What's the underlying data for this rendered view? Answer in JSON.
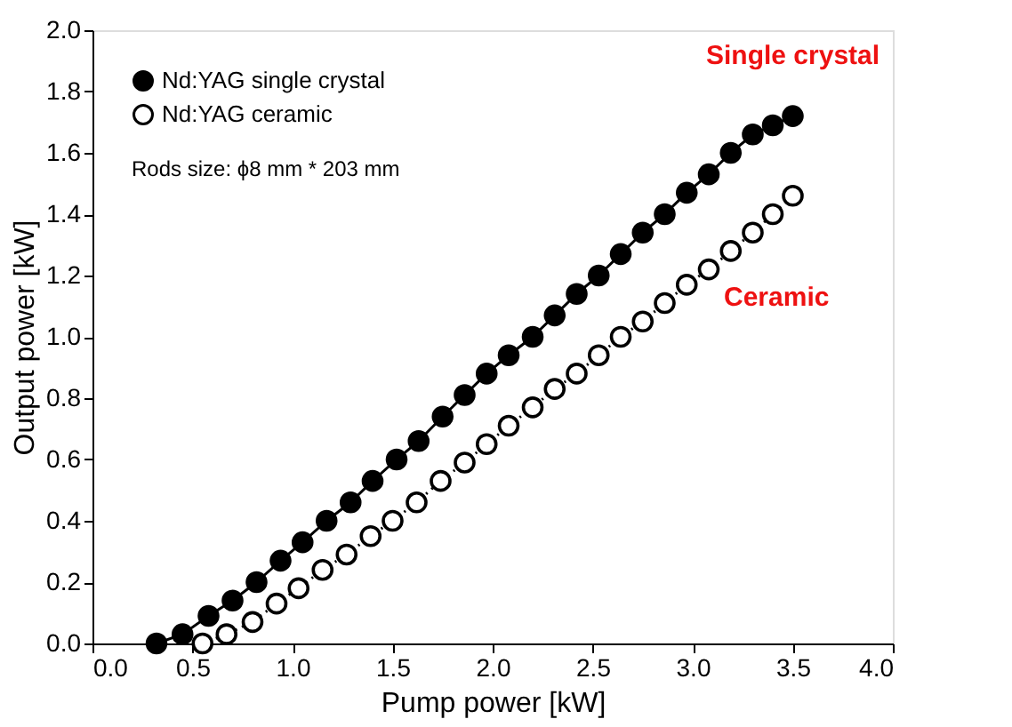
{
  "chart_data": {
    "type": "line",
    "xlabel": "Pump power [kW]",
    "ylabel": "Output power [kW]",
    "xlim": [
      0,
      4
    ],
    "xticks": [
      {
        "value": 0,
        "label": "0.0"
      },
      0.5,
      {
        "value": 1,
        "label": "1.0"
      },
      1.5,
      {
        "value": 2,
        "label": "2.0"
      },
      2.5,
      {
        "value": 3,
        "label": "3.0"
      },
      3.5,
      {
        "value": 4,
        "label": "4.0"
      }
    ],
    "ylim": [
      0,
      2
    ],
    "yticks": [
      {
        "value": 0,
        "label": "0.0"
      },
      0.2,
      0.4,
      0.6,
      0.8,
      {
        "value": 1,
        "label": "1.0"
      },
      1.2,
      1.4,
      1.6,
      1.8,
      {
        "value": 2,
        "label": "2.0"
      }
    ],
    "grid": false,
    "legend": "top left",
    "marker": "circle",
    "series": [
      {
        "name": "Nd:YAG single crystal",
        "color": "#000000",
        "line_style": "solid",
        "x": [
          0.32,
          0.45,
          0.58,
          0.7,
          0.82,
          0.94,
          1.05,
          1.17,
          1.29,
          1.4,
          1.52,
          1.63,
          1.75,
          1.86,
          1.97,
          2.08,
          2.2,
          2.31,
          2.42,
          2.53,
          2.64,
          2.75,
          2.86,
          2.97,
          3.08,
          3.19,
          3.3,
          3.4,
          3.5
        ],
        "values": [
          0.0,
          0.03,
          0.09,
          0.14,
          0.2,
          0.27,
          0.33,
          0.4,
          0.46,
          0.53,
          0.6,
          0.66,
          0.74,
          0.81,
          0.88,
          0.94,
          1.0,
          1.07,
          1.14,
          1.2,
          1.27,
          1.34,
          1.4,
          1.47,
          1.53,
          1.6,
          1.66,
          1.69,
          1.72
        ]
      },
      {
        "name": "Nd:YAG ceramic",
        "color": "#000000",
        "line_style": "dotted",
        "x": [
          0.55,
          0.67,
          0.8,
          0.92,
          1.03,
          1.15,
          1.27,
          1.39,
          1.5,
          1.62,
          1.74,
          1.86,
          1.97,
          2.08,
          2.2,
          2.31,
          2.42,
          2.53,
          2.64,
          2.75,
          2.86,
          2.97,
          3.08,
          3.19,
          3.3,
          3.4,
          3.5
        ],
        "values": [
          0.0,
          0.03,
          0.07,
          0.13,
          0.18,
          0.24,
          0.29,
          0.35,
          0.4,
          0.46,
          0.53,
          0.59,
          0.65,
          0.71,
          0.77,
          0.83,
          0.88,
          0.94,
          1.0,
          1.05,
          1.11,
          1.17,
          1.22,
          1.28,
          1.34,
          1.4,
          1.46
        ]
      }
    ],
    "annotations": [
      "Rods size: ϕ8 mm * 203 mm",
      "Single crystal",
      "Ceramic"
    ]
  }
}
